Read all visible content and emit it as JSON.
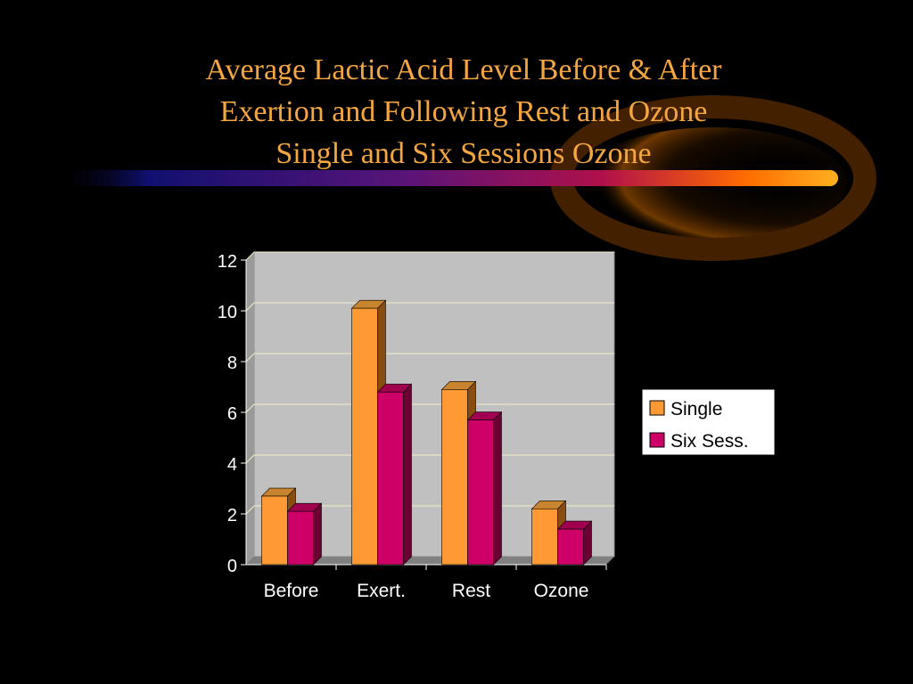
{
  "slide": {
    "title_lines": [
      "Average Lactic Acid Level Before & After",
      "Exertion and Following Rest and Ozone",
      "Single and Six Sessions Ozone"
    ]
  },
  "chart_data": {
    "type": "bar",
    "title": "Average Lactic Acid Level Before & After Exertion and Following Rest and Ozone Single and Six Sessions Ozone",
    "categories": [
      "Before",
      "Exert.",
      "Rest",
      "Ozone"
    ],
    "series": [
      {
        "name": "Single",
        "values": [
          2.7,
          10.1,
          6.9,
          2.2
        ],
        "color": "#ff9933",
        "top": "#c8842e",
        "side": "#8a4d10"
      },
      {
        "name": "Six Sess.",
        "values": [
          2.1,
          6.8,
          5.7,
          1.4
        ],
        "color": "#cc0066",
        "top": "#a0004f",
        "side": "#6b0033"
      }
    ],
    "ylim": [
      0,
      12
    ],
    "yticks": [
      "0",
      "2",
      "4",
      "6",
      "8",
      "10",
      "12"
    ],
    "xlabel": "",
    "ylabel": "",
    "grid": true,
    "legend_position": "right",
    "colors": {
      "plot_background": "#c0c0c0",
      "floor": "#808080",
      "gridline": "#f5f0c8",
      "axis_text": "#ffffff",
      "accent": "#f4a640"
    }
  }
}
